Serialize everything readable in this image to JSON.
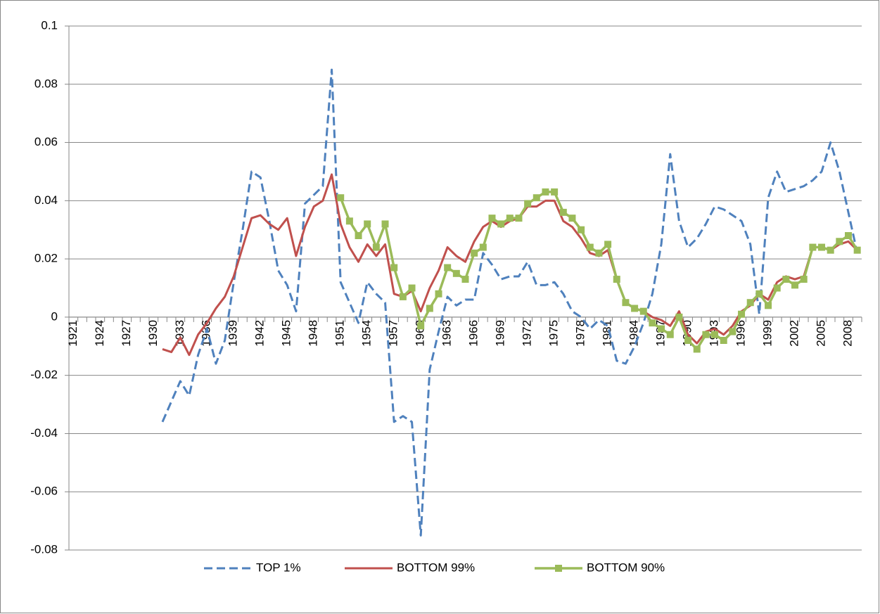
{
  "chart_data": {
    "type": "line",
    "categories": [
      "1921",
      null,
      null,
      "1924",
      null,
      null,
      "1927",
      null,
      null,
      "1930",
      null,
      null,
      "1933",
      null,
      null,
      "1936",
      null,
      null,
      "1939",
      null,
      null,
      "1942",
      null,
      null,
      "1945",
      null,
      null,
      "1948",
      null,
      null,
      "1951",
      null,
      null,
      "1954",
      null,
      null,
      "1957",
      null,
      null,
      "1960",
      null,
      null,
      "1963",
      null,
      null,
      "1966",
      null,
      null,
      "1969",
      null,
      null,
      "1972",
      null,
      null,
      "1975",
      null,
      null,
      "1978",
      null,
      null,
      "1981",
      null,
      null,
      "1984",
      null,
      null,
      "1987",
      null,
      null,
      "1990",
      null,
      null,
      "1993",
      null,
      null,
      "1996",
      null,
      null,
      "1999",
      null,
      null,
      "2002",
      null,
      null,
      "2005",
      null,
      null,
      "2008",
      null
    ],
    "series": [
      {
        "name": "TOP 1%",
        "color": "#4f81bd",
        "dash": "dashed",
        "marker": "none",
        "values": [
          null,
          null,
          null,
          null,
          null,
          null,
          null,
          null,
          null,
          null,
          -0.036,
          -0.029,
          -0.022,
          -0.027,
          -0.013,
          -0.004,
          -0.016,
          -0.008,
          0.012,
          0.03,
          0.05,
          0.048,
          0.033,
          0.016,
          0.011,
          0.002,
          0.039,
          0.042,
          0.045,
          0.085,
          0.012,
          0.005,
          -0.002,
          0.012,
          0.008,
          0.005,
          -0.036,
          -0.034,
          -0.036,
          -0.075,
          -0.018,
          -0.005,
          0.007,
          0.004,
          0.006,
          0.006,
          0.022,
          0.018,
          0.013,
          0.014,
          0.014,
          0.019,
          0.011,
          0.011,
          0.012,
          0.008,
          0.002,
          0,
          -0.004,
          -0.001,
          -0.003,
          -0.015,
          -0.016,
          -0.01,
          -0.002,
          0.008,
          0.025,
          0.056,
          0.033,
          0.024,
          0.027,
          0.032,
          0.038,
          0.037,
          0.035,
          0.033,
          0.025,
          0.001,
          0.041,
          0.05,
          0.043,
          0.044,
          0.045,
          0.047,
          0.05,
          0.06,
          0.05,
          0.036,
          0.022
        ]
      },
      {
        "name": "BOTTOM 99%",
        "color": "#c0504d",
        "dash": "solid",
        "marker": "none",
        "values": [
          null,
          null,
          null,
          null,
          null,
          null,
          null,
          null,
          null,
          null,
          -0.011,
          -0.012,
          -0.007,
          -0.013,
          -0.006,
          -0.002,
          0.003,
          0.007,
          0.014,
          0.024,
          0.034,
          0.035,
          0.032,
          0.03,
          0.034,
          0.021,
          0.031,
          0.038,
          0.04,
          0.049,
          0.032,
          0.024,
          0.019,
          0.025,
          0.021,
          0.025,
          0.008,
          0.007,
          0.009,
          0.002,
          0.01,
          0.016,
          0.024,
          0.021,
          0.019,
          0.026,
          0.031,
          0.033,
          0.031,
          0.033,
          0.034,
          0.038,
          0.038,
          0.04,
          0.04,
          0.033,
          0.031,
          0.027,
          0.022,
          0.021,
          0.023,
          0.013,
          0.005,
          0.003,
          0.002,
          0,
          -0.001,
          -0.003,
          0.002,
          -0.006,
          -0.009,
          -0.005,
          -0.004,
          -0.006,
          -0.003,
          0.002,
          0.004,
          0.008,
          0.006,
          0.012,
          0.014,
          0.013,
          0.014,
          0.024,
          0.024,
          0.023,
          0.025,
          0.026,
          0.023
        ]
      },
      {
        "name": "BOTTOM 90%",
        "color": "#9bbb59",
        "dash": "solid",
        "marker": "square",
        "values": [
          null,
          null,
          null,
          null,
          null,
          null,
          null,
          null,
          null,
          null,
          null,
          null,
          null,
          null,
          null,
          null,
          null,
          null,
          null,
          null,
          null,
          null,
          null,
          null,
          null,
          null,
          null,
          null,
          null,
          null,
          0.041,
          0.033,
          0.028,
          0.032,
          0.024,
          0.032,
          0.017,
          0.007,
          0.01,
          -0.003,
          0.003,
          0.008,
          0.017,
          0.015,
          0.013,
          0.022,
          0.024,
          0.034,
          0.032,
          0.034,
          0.034,
          0.039,
          0.041,
          0.043,
          0.043,
          0.036,
          0.034,
          0.03,
          0.024,
          0.022,
          0.025,
          0.013,
          0.005,
          0.003,
          0.002,
          -0.002,
          -0.004,
          -0.006,
          0,
          -0.008,
          -0.011,
          -0.006,
          -0.006,
          -0.008,
          -0.005,
          0.001,
          0.005,
          0.008,
          0.004,
          0.01,
          0.013,
          0.011,
          0.013,
          0.024,
          0.024,
          0.023,
          0.026,
          0.028,
          0.023
        ]
      }
    ],
    "ylim": [
      -0.08,
      0.1
    ],
    "yticks": [
      -0.08,
      -0.06,
      -0.04,
      -0.02,
      0,
      0.02,
      0.04,
      0.06,
      0.08,
      0.1
    ],
    "grid": true,
    "legend": "bottom"
  }
}
